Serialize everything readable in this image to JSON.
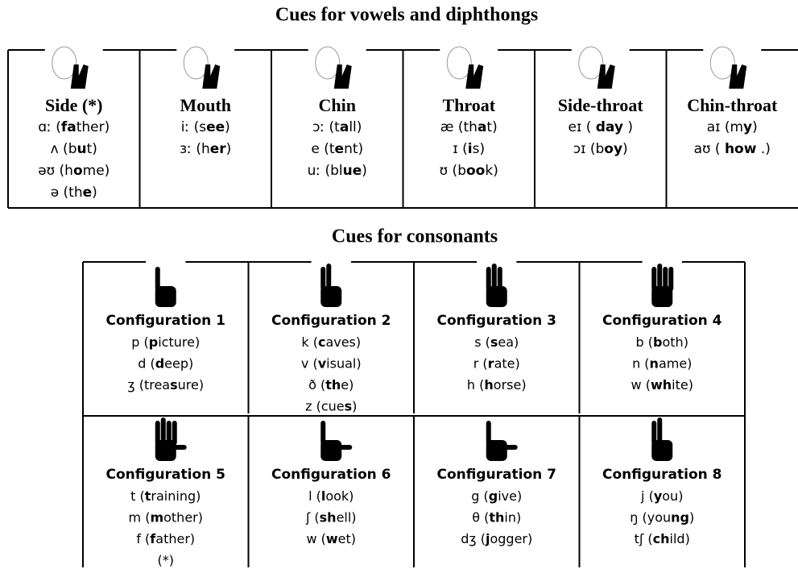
{
  "vowels": {
    "title": "Cues for vowels and diphthongs",
    "cells": [
      {
        "header": "Side (*)",
        "lines": [
          [
            "ɑː (",
            "fa",
            "ther)"
          ],
          [
            "ʌ (b",
            "u",
            "t)"
          ],
          [
            "əʊ (h",
            "o",
            "me)"
          ],
          [
            "ə (th",
            "e",
            ")"
          ]
        ]
      },
      {
        "header": "Mouth",
        "lines": [
          [
            "iː (s",
            "ee",
            ")"
          ],
          [
            "ɜː (h",
            "er",
            ")"
          ]
        ]
      },
      {
        "header": "Chin",
        "lines": [
          [
            "ɔː (t",
            "a",
            "ll)"
          ],
          [
            "e (t",
            "e",
            "nt)"
          ],
          [
            "uː (bl",
            "ue",
            ")"
          ]
        ]
      },
      {
        "header": "Throat",
        "lines": [
          [
            "æ (th",
            "a",
            "t)"
          ],
          [
            "ɪ (",
            "i",
            "s)"
          ],
          [
            "ʊ (b",
            "oo",
            "k)"
          ]
        ]
      },
      {
        "header": "Side-throat",
        "lines": [
          [
            "eɪ ( ",
            "day",
            " )"
          ],
          [
            "ɔɪ (b",
            "oy",
            ")"
          ]
        ]
      },
      {
        "header": "Chin-throat",
        "lines": [
          [
            "aɪ (m",
            "y",
            ")"
          ],
          [
            "aʊ ( ",
            "how",
            " .)"
          ]
        ]
      }
    ]
  },
  "consonants": {
    "title": "Cues for consonants",
    "cells": [
      {
        "header": "Configuration 1",
        "lines": [
          [
            "p (",
            "p",
            "icture)"
          ],
          [
            "d (",
            "d",
            "eep)"
          ],
          [
            "ʒ (trea",
            "s",
            "ure)"
          ]
        ]
      },
      {
        "header": "Configuration 2",
        "lines": [
          [
            "k (",
            "c",
            "aves)"
          ],
          [
            "v (",
            "v",
            "isual)"
          ],
          [
            "ð (",
            "th",
            "e)"
          ],
          [
            "z (cue",
            "s",
            ")"
          ]
        ]
      },
      {
        "header": "Configuration 3",
        "lines": [
          [
            "s (",
            "s",
            "ea)"
          ],
          [
            "r (",
            "r",
            "ate)"
          ],
          [
            "h (",
            "h",
            "orse)"
          ]
        ]
      },
      {
        "header": "Configuration 4",
        "lines": [
          [
            "b (",
            "b",
            "oth)"
          ],
          [
            "n (",
            "n",
            "ame)"
          ],
          [
            "w (",
            "wh",
            "ite)"
          ]
        ]
      },
      {
        "header": "Configuration 5",
        "lines": [
          [
            "t (",
            "t",
            "raining)"
          ],
          [
            "m (",
            "m",
            "other)"
          ],
          [
            "f (",
            "f",
            "ather)"
          ],
          [
            "(*)"
          ]
        ]
      },
      {
        "header": "Configuration 6",
        "lines": [
          [
            "l (",
            "l",
            "ook)"
          ],
          [
            "ʃ (",
            "sh",
            "ell)"
          ],
          [
            "w (",
            "w",
            "et)"
          ]
        ]
      },
      {
        "header": "Configuration 7",
        "lines": [
          [
            "g (",
            "g",
            "ive)"
          ],
          [
            "θ (",
            "th",
            "in)"
          ],
          [
            "dʒ (",
            "j",
            "ogger)"
          ]
        ]
      },
      {
        "header": "Configuration 8",
        "lines": [
          [
            "j (",
            "y",
            "ou)"
          ],
          [
            "ŋ (you",
            "ng",
            ")"
          ],
          [
            "tʃ (",
            "ch",
            "ild)"
          ]
        ]
      }
    ]
  }
}
